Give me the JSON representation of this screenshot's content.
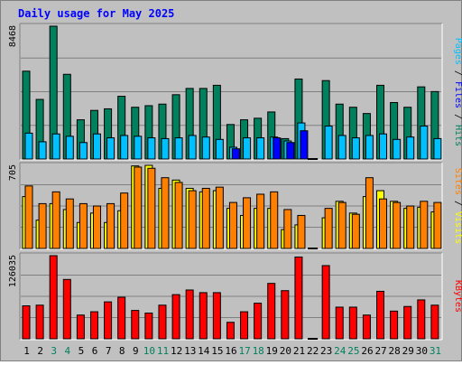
{
  "title": "Daily usage for May 2025",
  "colors": {
    "background": "#c0c0c0",
    "title": "#0000ff",
    "hits": "#00805c",
    "files": "#00c0ff",
    "pages": "#0000ff",
    "visits": "#ffff00",
    "sites": "#ff8000",
    "kbytes": "#ff0000",
    "weekend_label": "#00805c",
    "weekday_label": "#000000"
  },
  "chart_data": [
    {
      "type": "bar",
      "panel": "top",
      "ymax_label": "8468",
      "right_label_parts": [
        {
          "text": "Pages",
          "color": "#00c0ff"
        },
        {
          "text": " / ",
          "color": "#000000"
        },
        {
          "text": "Files",
          "color": "#0000ff"
        },
        {
          "text": " / ",
          "color": "#000000"
        },
        {
          "text": "Hits",
          "color": "#00805c"
        }
      ],
      "ylim": [
        0,
        8468
      ],
      "series": [
        {
          "name": "Hits",
          "values": [
            5600,
            3800,
            8468,
            5400,
            2500,
            3100,
            3200,
            4000,
            3300,
            3400,
            3500,
            4100,
            4500,
            4500,
            4700,
            2200,
            2500,
            2600,
            3000,
            1300,
            5100,
            0,
            5000,
            3500,
            3300,
            2900,
            4700,
            3600,
            3300,
            4600,
            4300
          ]
        },
        {
          "name": "Files",
          "values": [
            1650,
            1100,
            1600,
            1450,
            1050,
            1600,
            1350,
            1500,
            1450,
            1350,
            1300,
            1350,
            1500,
            1400,
            1250,
            750,
            1350,
            1350,
            1400,
            1150,
            2300,
            0,
            2100,
            1500,
            1350,
            1500,
            1600,
            1250,
            1400,
            2100,
            1300
          ]
        },
        {
          "name": "Pages",
          "values": [
            0,
            0,
            0,
            0,
            0,
            0,
            0,
            0,
            0,
            0,
            0,
            0,
            0,
            0,
            0,
            650,
            0,
            0,
            1350,
            1050,
            1800,
            0,
            0,
            0,
            0,
            0,
            0,
            0,
            0,
            0,
            0
          ]
        }
      ]
    },
    {
      "type": "bar",
      "panel": "middle",
      "ymax_label": "705",
      "right_label_parts": [
        {
          "text": "Sites",
          "color": "#ff8000"
        },
        {
          "text": " / ",
          "color": "#000000"
        },
        {
          "text": "Visits",
          "color": "#ffff00"
        }
      ],
      "ylim": [
        0,
        705
      ],
      "series": [
        {
          "name": "Visits",
          "values": [
            440,
            240,
            380,
            330,
            220,
            300,
            220,
            320,
            700,
            705,
            510,
            580,
            510,
            480,
            490,
            340,
            280,
            340,
            340,
            160,
            200,
            0,
            260,
            400,
            300,
            440,
            490,
            400,
            340,
            350,
            310
          ]
        },
        {
          "name": "Sites",
          "values": [
            530,
            380,
            480,
            420,
            380,
            360,
            380,
            470,
            690,
            680,
            600,
            560,
            490,
            510,
            520,
            390,
            430,
            460,
            480,
            330,
            280,
            0,
            340,
            390,
            290,
            600,
            420,
            390,
            360,
            400,
            390
          ]
        }
      ]
    },
    {
      "type": "bar",
      "panel": "bottom",
      "ymax_label": "126035",
      "right_label_parts": [
        {
          "text": "KBytes",
          "color": "#ff0000"
        }
      ],
      "ylim": [
        0,
        126035
      ],
      "series": [
        {
          "name": "KBytes",
          "values": [
            50000,
            51000,
            126035,
            90000,
            36000,
            41000,
            56000,
            63000,
            43000,
            39000,
            51000,
            67000,
            74000,
            70000,
            70000,
            25000,
            41000,
            54000,
            84000,
            73000,
            124000,
            0,
            111000,
            48000,
            48000,
            36000,
            72000,
            42000,
            49000,
            59000,
            51000
          ]
        }
      ]
    }
  ],
  "days": [
    {
      "label": "1",
      "weekend": false
    },
    {
      "label": "2",
      "weekend": false
    },
    {
      "label": "3",
      "weekend": true
    },
    {
      "label": "4",
      "weekend": true
    },
    {
      "label": "5",
      "weekend": false
    },
    {
      "label": "6",
      "weekend": false
    },
    {
      "label": "7",
      "weekend": false
    },
    {
      "label": "8",
      "weekend": false
    },
    {
      "label": "9",
      "weekend": false
    },
    {
      "label": "10",
      "weekend": true
    },
    {
      "label": "11",
      "weekend": true
    },
    {
      "label": "12",
      "weekend": false
    },
    {
      "label": "13",
      "weekend": false
    },
    {
      "label": "14",
      "weekend": false
    },
    {
      "label": "15",
      "weekend": false
    },
    {
      "label": "16",
      "weekend": false
    },
    {
      "label": "17",
      "weekend": true
    },
    {
      "label": "18",
      "weekend": true
    },
    {
      "label": "19",
      "weekend": false
    },
    {
      "label": "20",
      "weekend": false
    },
    {
      "label": "21",
      "weekend": false
    },
    {
      "label": "22",
      "weekend": false
    },
    {
      "label": "23",
      "weekend": false
    },
    {
      "label": "24",
      "weekend": true
    },
    {
      "label": "25",
      "weekend": true
    },
    {
      "label": "26",
      "weekend": false
    },
    {
      "label": "27",
      "weekend": false
    },
    {
      "label": "28",
      "weekend": false
    },
    {
      "label": "29",
      "weekend": false
    },
    {
      "label": "30",
      "weekend": false
    },
    {
      "label": "31",
      "weekend": true
    }
  ]
}
